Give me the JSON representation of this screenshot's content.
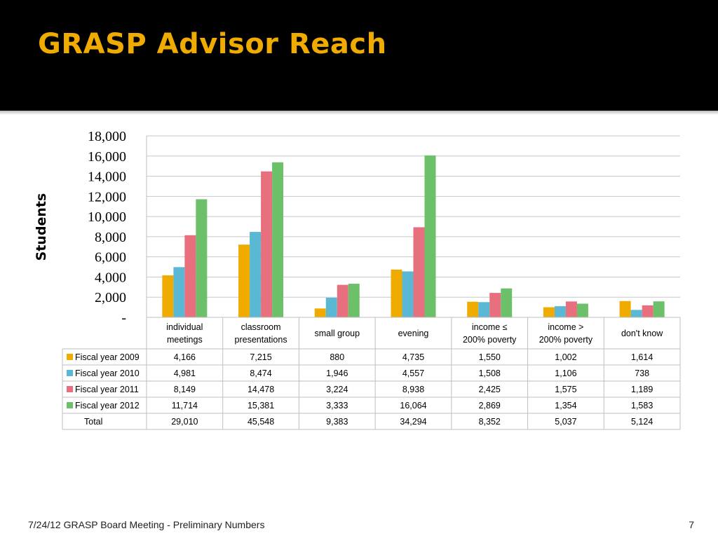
{
  "slide": {
    "title": "GRASP Advisor Reach",
    "footer": "7/24/12 GRASP Board Meeting - Preliminary Numbers",
    "page_number": "7"
  },
  "colors": {
    "header_bg": "#000000",
    "title": "#f0ab00",
    "series": [
      "#f0ab00",
      "#5bb8d4",
      "#e8707e",
      "#6cc06a"
    ]
  },
  "chart_data": {
    "type": "bar",
    "ylabel": "Students",
    "ylim": [
      0,
      18000
    ],
    "ytick_labels": [
      "-",
      "2,000",
      "4,000",
      "6,000",
      "8,000",
      "10,000",
      "12,000",
      "14,000",
      "16,000",
      "18,000"
    ],
    "grid": true,
    "legend": "in data table",
    "categories": [
      [
        "individual",
        "meetings"
      ],
      [
        "classroom",
        "presentations"
      ],
      [
        "small group"
      ],
      [
        "evening"
      ],
      [
        "income ≤",
        "200% poverty"
      ],
      [
        "income >",
        "200% poverty"
      ],
      [
        "don't know"
      ]
    ],
    "series": [
      {
        "name": "Fiscal year 2009",
        "values": [
          4166,
          7215,
          880,
          4735,
          1550,
          1002,
          1614
        ],
        "labels": [
          "4,166",
          "7,215",
          "880",
          "4,735",
          "1,550",
          "1,002",
          "1,614"
        ]
      },
      {
        "name": "Fiscal year 2010",
        "values": [
          4981,
          8474,
          1946,
          4557,
          1508,
          1106,
          738
        ],
        "labels": [
          "4,981",
          "8,474",
          "1,946",
          "4,557",
          "1,508",
          "1,106",
          "738"
        ]
      },
      {
        "name": "Fiscal year 2011",
        "values": [
          8149,
          14478,
          3224,
          8938,
          2425,
          1575,
          1189
        ],
        "labels": [
          "8,149",
          "14,478",
          "3,224",
          "8,938",
          "2,425",
          "1,575",
          "1,189"
        ]
      },
      {
        "name": "Fiscal year 2012",
        "values": [
          11714,
          15381,
          3333,
          16064,
          2869,
          1354,
          1583
        ],
        "labels": [
          "11,714",
          "15,381",
          "3,333",
          "16,064",
          "2,869",
          "1,354",
          "1,583"
        ]
      }
    ],
    "total": {
      "name": "Total",
      "labels": [
        "29,010",
        "45,548",
        "9,383",
        "34,294",
        "8,352",
        "5,037",
        "5,124"
      ]
    }
  }
}
